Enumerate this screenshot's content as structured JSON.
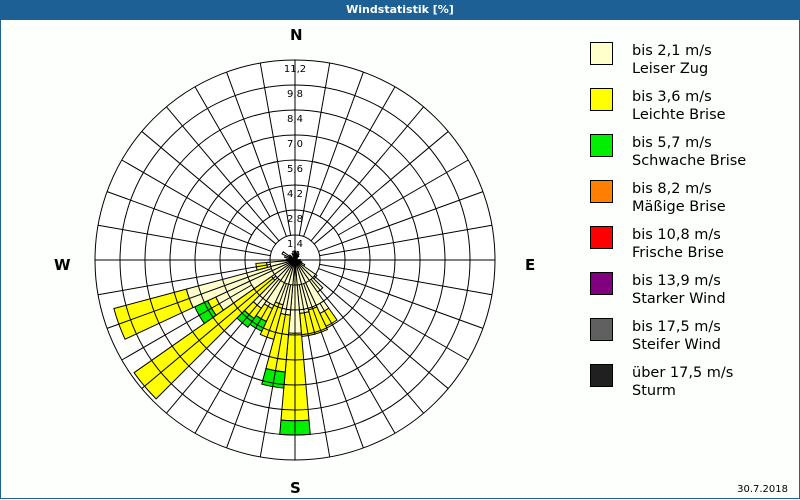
{
  "header": {
    "title": "Windstatistik [%]"
  },
  "compass": {
    "n": "N",
    "e": "E",
    "s": "S",
    "w": "W"
  },
  "footer": {
    "date": "30.7.2018"
  },
  "legend": [
    {
      "range": "bis 2,1 m/s",
      "name": "Leiser Zug",
      "color": "#ffffcc"
    },
    {
      "range": "bis 3,6 m/s",
      "name": "Leichte Brise",
      "color": "#ffff00"
    },
    {
      "range": "bis 5,7 m/s",
      "name": "Schwache Brise",
      "color": "#00ee00"
    },
    {
      "range": "bis 8,2 m/s",
      "name": "Mäßige Brise",
      "color": "#ff8000"
    },
    {
      "range": "bis 10,8 m/s",
      "name": "Frische Brise",
      "color": "#ff0000"
    },
    {
      "range": "bis 13,9 m/s",
      "name": "Starker Wind",
      "color": "#800080"
    },
    {
      "range": "bis 17,5 m/s",
      "name": "Steifer Wind",
      "color": "#606060"
    },
    {
      "range": "über 17,5 m/s",
      "name": "Sturm",
      "color": "#202020"
    }
  ],
  "chart_data": {
    "type": "wind-rose",
    "title": "Windstatistik [%]",
    "unit": "%",
    "sector_width_deg": 10,
    "radial_ticks": [
      "1,4",
      "2,8",
      "4,2",
      "5,6",
      "7,0",
      "8,4",
      "9,8",
      "11,2"
    ],
    "rmax": 11.2,
    "series_names": [
      "Leiser Zug",
      "Leichte Brise",
      "Schwache Brise"
    ],
    "sectors": [
      {
        "dir": 0,
        "values": [
          0.5,
          0,
          0
        ]
      },
      {
        "dir": 10,
        "values": [
          0.4,
          0,
          0
        ]
      },
      {
        "dir": 20,
        "values": [
          0.5,
          0,
          0
        ]
      },
      {
        "dir": 30,
        "values": [
          0.4,
          0,
          0
        ]
      },
      {
        "dir": 40,
        "values": [
          0.3,
          0,
          0
        ]
      },
      {
        "dir": 90,
        "values": [
          0.3,
          0,
          0
        ]
      },
      {
        "dir": 110,
        "values": [
          0.4,
          0,
          0
        ]
      },
      {
        "dir": 120,
        "values": [
          0.6,
          0,
          0
        ]
      },
      {
        "dir": 130,
        "values": [
          1.5,
          0,
          0
        ]
      },
      {
        "dir": 140,
        "values": [
          2.2,
          0,
          0
        ]
      },
      {
        "dir": 150,
        "values": [
          3.3,
          0.8,
          0
        ]
      },
      {
        "dir": 160,
        "values": [
          2.9,
          1.4,
          0
        ]
      },
      {
        "dir": 170,
        "values": [
          3.0,
          1.3,
          0
        ]
      },
      {
        "dir": 180,
        "values": [
          4.1,
          4.9,
          0.8
        ]
      },
      {
        "dir": 190,
        "values": [
          3.1,
          3.2,
          0.9
        ]
      },
      {
        "dir": 200,
        "values": [
          2.6,
          2.0,
          0
        ]
      },
      {
        "dir": 210,
        "values": [
          3.0,
          0.8,
          0.6
        ]
      },
      {
        "dir": 220,
        "values": [
          3.3,
          0.7,
          0.6
        ]
      },
      {
        "dir": 230,
        "values": [
          1.6,
          9.4,
          0
        ]
      },
      {
        "dir": 240,
        "values": [
          4.9,
          0.5,
          0.8
        ]
      },
      {
        "dir": 250,
        "values": [
          6.3,
          4.2,
          0
        ]
      },
      {
        "dir": 260,
        "values": [
          1.6,
          0.6,
          0
        ]
      },
      {
        "dir": 270,
        "values": [
          0.5,
          0,
          0
        ]
      },
      {
        "dir": 290,
        "values": [
          0.6,
          0,
          0
        ]
      },
      {
        "dir": 300,
        "values": [
          0.8,
          0,
          0
        ]
      },
      {
        "dir": 310,
        "values": [
          0.4,
          0,
          0
        ]
      },
      {
        "dir": 340,
        "values": [
          0.4,
          0,
          0
        ]
      },
      {
        "dir": 350,
        "values": [
          0.5,
          0,
          0
        ]
      }
    ]
  }
}
